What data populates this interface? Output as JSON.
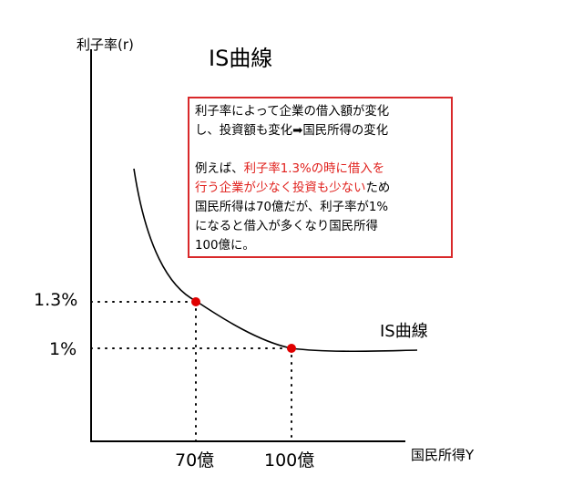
{
  "diagram": {
    "title": "IS曲線",
    "y_axis_label": "利子率(r)",
    "x_axis_label": "国民所得Y",
    "curve_label": "IS曲線",
    "y_ticks": [
      "1%",
      "1.3%"
    ],
    "x_ticks": [
      "70億",
      "100億"
    ],
    "colors": {
      "axis": "#000000",
      "point": "#e00000",
      "box_border": "#d9282a",
      "highlight_text": "#e0201c"
    },
    "note": {
      "line1": "利子率によって企業の借入額が変化\nし、投資額も変化➡国民所得の変化",
      "line2_prefix": "例えば、",
      "line2_highlight": "利子率1.3%の時に借入を\n行う企業が少なく投資も少ない",
      "line2_suffix": "ため\n国民所得は70億だが、利子率が1%\nになると借入が多くなり国民所得\n100億に。"
    }
  },
  "chart_data": {
    "type": "line",
    "series": [
      {
        "name": "IS曲線",
        "points": [
          {
            "x": "70億",
            "y": "1.3%"
          },
          {
            "x": "100億",
            "y": "1%"
          }
        ]
      }
    ],
    "xlabel": "国民所得Y",
    "ylabel": "利子率(r)",
    "title": "IS曲線"
  }
}
